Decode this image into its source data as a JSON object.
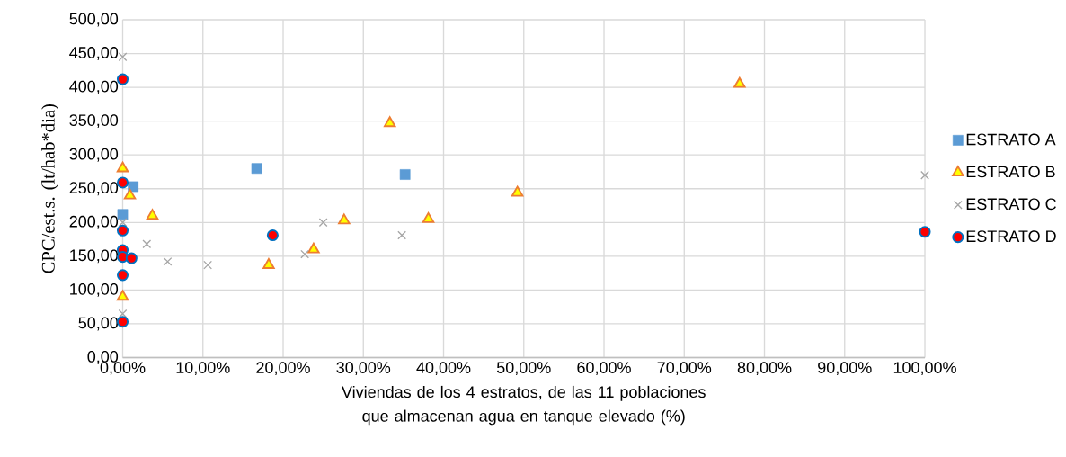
{
  "chart_data": {
    "type": "scatter",
    "xlabel": "Viviendas de los 4 estratos, de las 11 poblaciones que almacenan agua en tanque elevado (%)",
    "ylabel": "CPC/est.s.   (lt/hab*dia)",
    "xlim": [
      0,
      100
    ],
    "ylim": [
      0,
      500
    ],
    "xticks": [
      {
        "value": 0,
        "label": "0,00%"
      },
      {
        "value": 10,
        "label": "10,00%"
      },
      {
        "value": 20,
        "label": "20,00%"
      },
      {
        "value": 30,
        "label": "30,00%"
      },
      {
        "value": 40,
        "label": "40,00%"
      },
      {
        "value": 50,
        "label": "50,00%"
      },
      {
        "value": 60,
        "label": "60,00%"
      },
      {
        "value": 70,
        "label": "70,00%"
      },
      {
        "value": 80,
        "label": "80,00%"
      },
      {
        "value": 90,
        "label": "90,00%"
      },
      {
        "value": 100,
        "label": "100,00%"
      }
    ],
    "yticks": [
      {
        "value": 0,
        "label": "0,00"
      },
      {
        "value": 50,
        "label": "50,00"
      },
      {
        "value": 100,
        "label": "100,00"
      },
      {
        "value": 150,
        "label": "150,00"
      },
      {
        "value": 200,
        "label": "200,00"
      },
      {
        "value": 250,
        "label": "250,00"
      },
      {
        "value": 300,
        "label": "300,00"
      },
      {
        "value": 350,
        "label": "350,00"
      },
      {
        "value": 400,
        "label": "400,00"
      },
      {
        "value": 450,
        "label": "450,00"
      },
      {
        "value": 500,
        "label": "500,00"
      }
    ],
    "grid": true,
    "legend": "right",
    "series": [
      {
        "name": "ESTRATO A",
        "color": "#5b9bd5",
        "marker": "square",
        "x": [
          0,
          1.3,
          16.7,
          35.2
        ],
        "values": [
          212,
          253,
          280,
          271
        ]
      },
      {
        "name": "ESTRATO B",
        "color": "#ffff00",
        "marker": "triangle",
        "x": [
          0,
          0.9,
          3.7,
          18.2,
          0,
          33.3,
          27.6,
          23.8,
          38.1,
          49.2,
          76.9
        ],
        "values": [
          280,
          240,
          210,
          137,
          90,
          347,
          203,
          160,
          205,
          244,
          405
        ]
      },
      {
        "name": "ESTRATO C",
        "color": "#a5a5a5",
        "marker": "cross",
        "x": [
          0,
          0,
          3.0,
          5.6,
          10.6,
          0,
          25.0,
          22.7,
          34.8,
          100
        ],
        "values": [
          445,
          200,
          168,
          142,
          137,
          65,
          200,
          153,
          181,
          270
        ]
      },
      {
        "name": "ESTRATO D",
        "color": "#ff0000",
        "marker": "circle",
        "x": [
          0,
          0,
          0,
          0,
          0,
          1.1,
          0,
          0,
          18.7,
          100
        ],
        "values": [
          412,
          259,
          188,
          159,
          149,
          147,
          122,
          53,
          181,
          186
        ]
      }
    ]
  }
}
